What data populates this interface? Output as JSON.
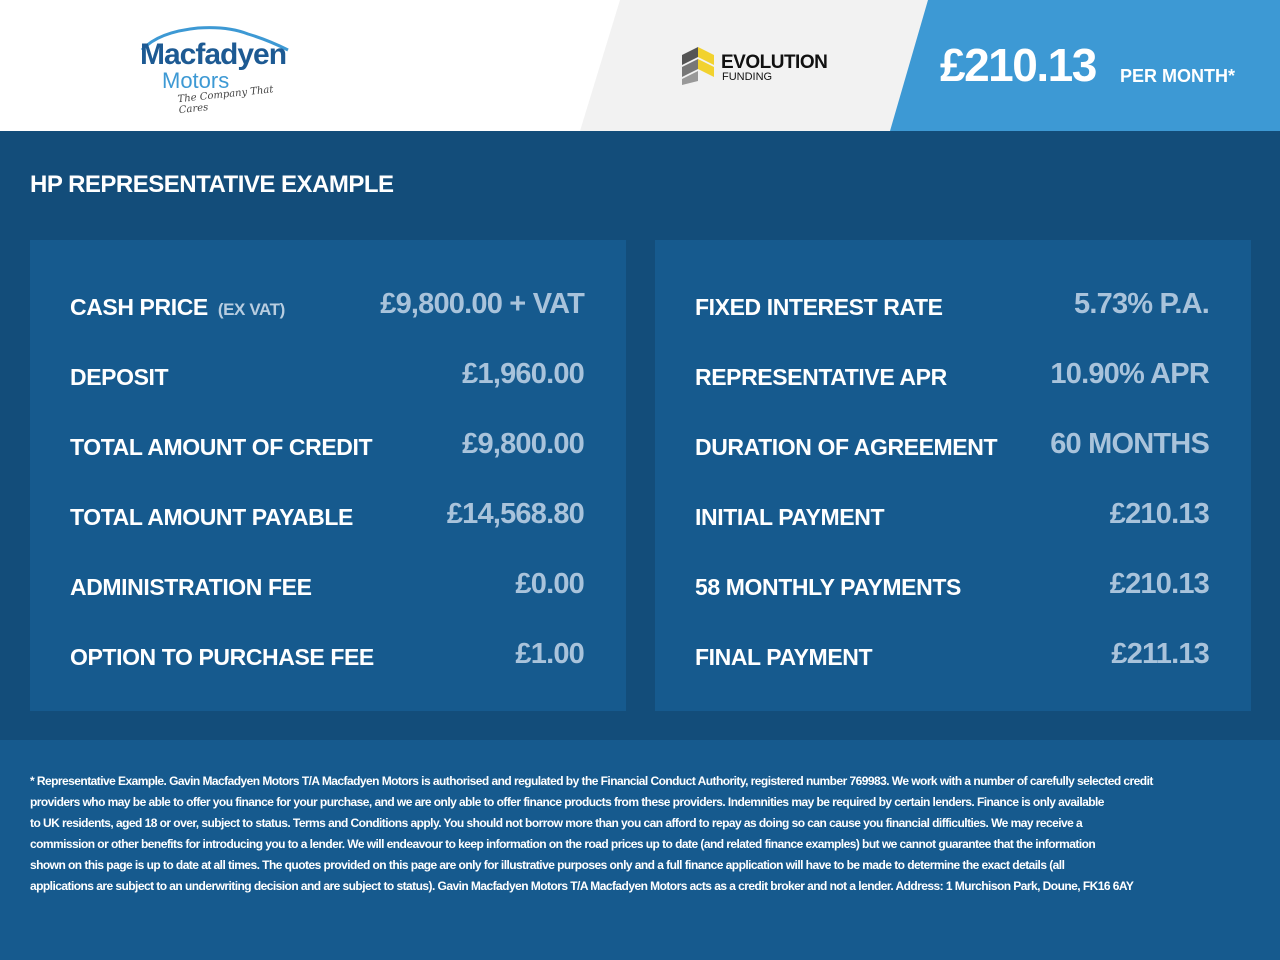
{
  "header": {
    "logo": {
      "name": "Macfadyen",
      "sub": "Motors",
      "tagline": "The Company That Cares"
    },
    "partner": {
      "name": "EVOLUTION",
      "sub": "FUNDING"
    },
    "monthly_price": "£210.13",
    "per_month_label": "PER MONTH*"
  },
  "colors": {
    "header_right": "#3d99d4",
    "body": "#134d7a",
    "panel": "#165a8e",
    "value_text": "#a9c3db"
  },
  "section_title": "HP REPRESENTATIVE EXAMPLE",
  "left_panel": [
    {
      "label": "CASH PRICE",
      "note": "(EX VAT)",
      "value": "£9,800.00 + VAT"
    },
    {
      "label": "DEPOSIT",
      "value": "£1,960.00"
    },
    {
      "label": "TOTAL AMOUNT OF CREDIT",
      "value": "£9,800.00"
    },
    {
      "label": "TOTAL AMOUNT PAYABLE",
      "value": "£14,568.80"
    },
    {
      "label": "ADMINISTRATION FEE",
      "value": "£0.00"
    },
    {
      "label": "OPTION TO PURCHASE FEE",
      "value": "£1.00"
    }
  ],
  "right_panel": [
    {
      "label": "FIXED INTEREST RATE",
      "value": "5.73% P.A."
    },
    {
      "label": "REPRESENTATIVE APR",
      "value": "10.90% APR"
    },
    {
      "label": "DURATION OF AGREEMENT",
      "value": "60 MONTHS"
    },
    {
      "label": "INITIAL PAYMENT",
      "value": "£210.13"
    },
    {
      "label": "58 MONTHLY PAYMENTS",
      "value": "£210.13"
    },
    {
      "label": "FINAL PAYMENT",
      "value": "£211.13"
    }
  ],
  "footer_lines": [
    "* Representative Example. Gavin Macfadyen Motors T/A Macfadyen Motors is authorised and regulated by the Financial Conduct Authority, registered number 769983. We work with a number of carefully selected credit",
    "providers who may be able to offer you finance for your purchase, and we are only able to offer finance products from these providers. Indemnities may be required by certain lenders. Finance is only available",
    "to UK residents, aged 18 or over, subject to status. Terms and Conditions apply. You should not borrow more than you can afford to repay as doing so can cause you financial difficulties. We may receive a",
    "commission or other benefits for introducing you to a lender. We will endeavour to keep information on the road prices up to date (and related finance examples) but we cannot guarantee that the information",
    "shown on this page is up to date at all times. The quotes provided on this page are only for illustrative purposes only and a full finance application will have to be made to determine the exact details (all",
    "applications are subject to an underwriting decision and are subject to status). Gavin Macfadyen Motors T/A Macfadyen Motors acts as a credit broker and not a lender. Address: 1 Murchison Park, Doune, FK16 6AY"
  ]
}
